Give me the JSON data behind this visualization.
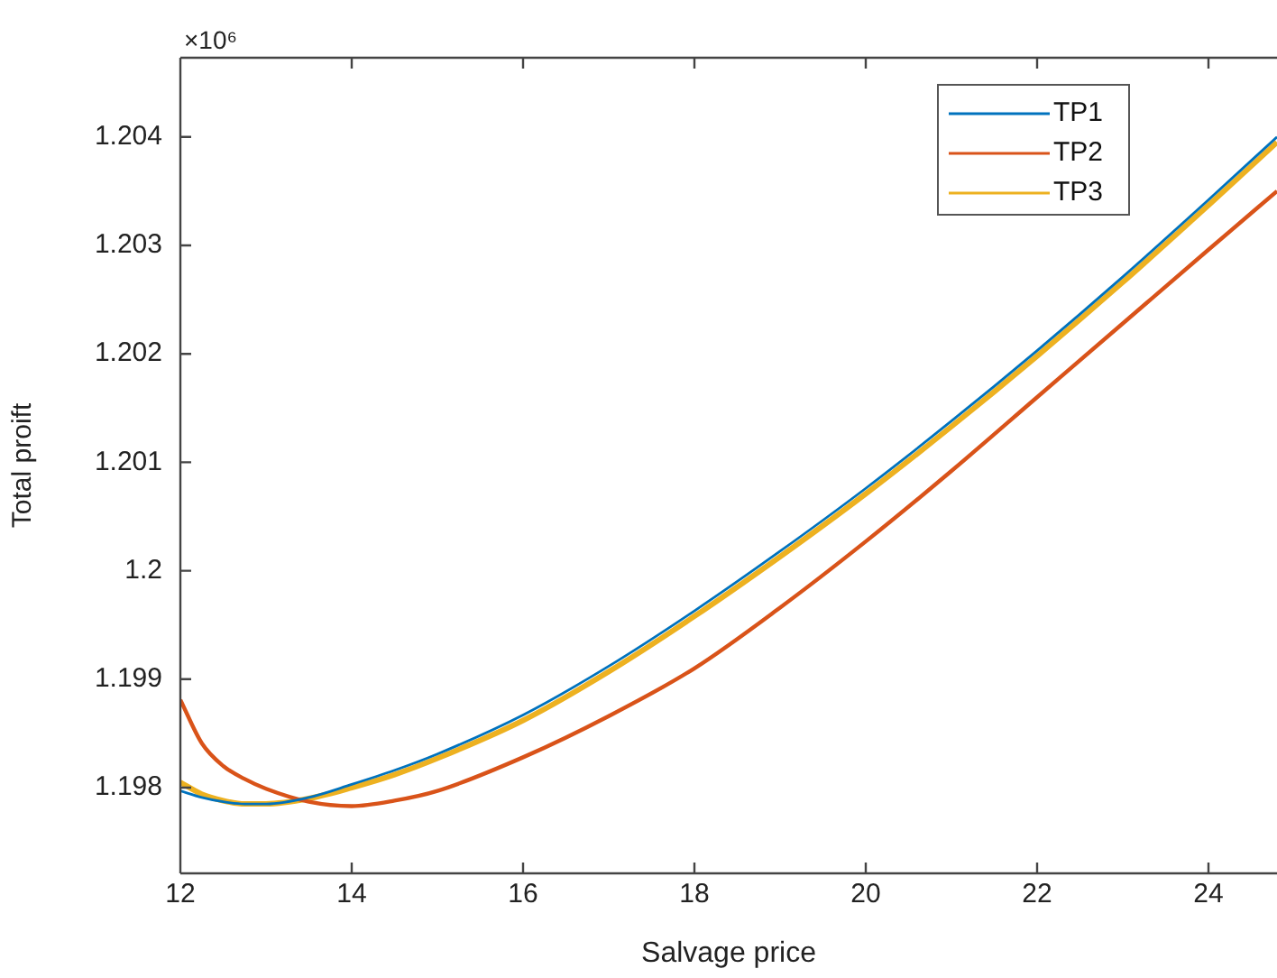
{
  "chart_data": {
    "type": "line",
    "xlabel": "Salvage price",
    "ylabel": "Total proift",
    "annotations": [
      "×10⁶"
    ],
    "xlim": [
      12,
      24.8
    ],
    "xticks": [
      12,
      14,
      16,
      18,
      20,
      22,
      24
    ],
    "ylim": [
      1.19721,
      1.20473
    ],
    "yticks": [
      1.198,
      1.199,
      {
        "value": 1.2,
        "label": "1.2"
      },
      1.201,
      1.202,
      1.203,
      1.204
    ],
    "grid": false,
    "legend": "top right",
    "marker": "none",
    "line_style": "solid",
    "x": [
      12,
      12.25,
      12.5,
      12.75,
      13,
      13.5,
      14,
      14.5,
      15,
      16,
      17,
      18,
      19,
      20,
      21,
      22,
      23,
      24,
      24.8
    ],
    "series": [
      {
        "name": "TP1",
        "color": "#0072bd",
        "values": [
          1.19797,
          1.19791,
          1.19787,
          1.19785,
          1.19785,
          1.19791,
          1.19803,
          1.19816,
          1.19831,
          1.19867,
          1.19912,
          1.19963,
          1.20018,
          1.20076,
          1.20138,
          1.20203,
          1.20271,
          1.20342,
          1.204
        ]
      },
      {
        "name": "TP2",
        "color": "#d95319",
        "values": [
          1.19881,
          1.19841,
          1.1982,
          1.19808,
          1.19799,
          1.19787,
          1.19783,
          1.19788,
          1.19797,
          1.19828,
          1.19866,
          1.1991,
          1.19966,
          1.20027,
          1.20092,
          1.2016,
          1.20228,
          1.20296,
          1.2035
        ]
      },
      {
        "name": "TP3",
        "color": "#edb120",
        "values": [
          1.19805,
          1.19794,
          1.19788,
          1.19785,
          1.19785,
          1.1979,
          1.198,
          1.19812,
          1.19827,
          1.19862,
          1.19907,
          1.19958,
          1.20013,
          1.20071,
          1.20133,
          1.20198,
          1.20266,
          1.20337,
          1.20395
        ]
      }
    ]
  }
}
